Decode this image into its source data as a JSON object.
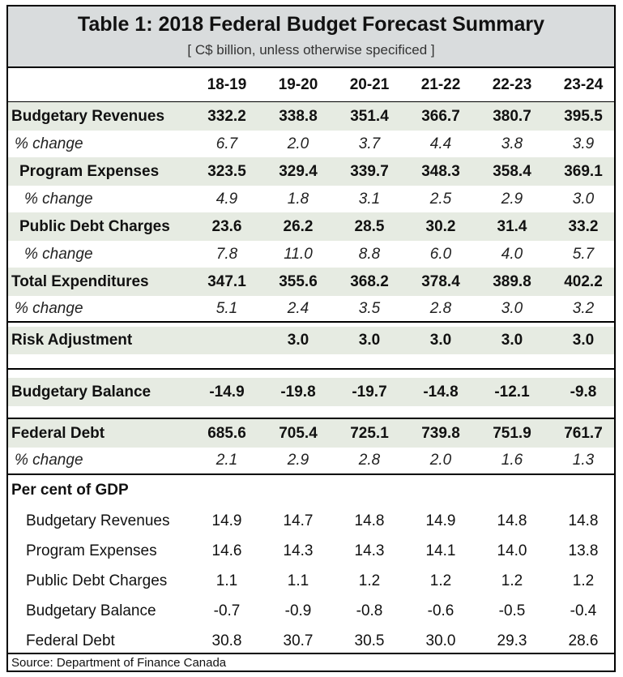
{
  "title": "Table 1: 2018 Federal Budget Forecast Summary",
  "subtitle": "[ C$ billion, unless otherwise specificed ]",
  "years": [
    "18-19",
    "19-20",
    "20-21",
    "21-22",
    "22-23",
    "23-24"
  ],
  "rows": [
    {
      "label": "Budgetary Revenues",
      "values": [
        "332.2",
        "338.8",
        "351.4",
        "366.7",
        "380.7",
        "395.5"
      ]
    },
    {
      "label": "% change",
      "values": [
        "6.7",
        "2.0",
        "3.7",
        "4.4",
        "3.8",
        "3.9"
      ]
    },
    {
      "label": "Program Expenses",
      "values": [
        "323.5",
        "329.4",
        "339.7",
        "348.3",
        "358.4",
        "369.1"
      ]
    },
    {
      "label": "% change",
      "values": [
        "4.9",
        "1.8",
        "3.1",
        "2.5",
        "2.9",
        "3.0"
      ]
    },
    {
      "label": "Public Debt Charges",
      "values": [
        "23.6",
        "26.2",
        "28.5",
        "30.2",
        "31.4",
        "33.2"
      ]
    },
    {
      "label": "% change",
      "values": [
        "7.8",
        "11.0",
        "8.8",
        "6.0",
        "4.0",
        "5.7"
      ]
    },
    {
      "label": "Total Expenditures",
      "values": [
        "347.1",
        "355.6",
        "368.2",
        "378.4",
        "389.8",
        "402.2"
      ]
    },
    {
      "label": "% change",
      "values": [
        "5.1",
        "2.4",
        "3.5",
        "2.8",
        "3.0",
        "3.2"
      ]
    },
    {
      "label": "Risk Adjustment",
      "values": [
        "",
        "3.0",
        "3.0",
        "3.0",
        "3.0",
        "3.0"
      ]
    },
    {
      "label": "Budgetary Balance",
      "values": [
        "-14.9",
        "-19.8",
        "-19.7",
        "-14.8",
        "-12.1",
        "-9.8"
      ]
    },
    {
      "label": "Federal Debt",
      "values": [
        "685.6",
        "705.4",
        "725.1",
        "739.8",
        "751.9",
        "761.7"
      ]
    },
    {
      "label": "% change",
      "values": [
        "2.1",
        "2.9",
        "2.8",
        "2.0",
        "1.6",
        "1.3"
      ]
    },
    {
      "label": "Per cent of GDP",
      "values": [
        "",
        "",
        "",
        "",
        "",
        ""
      ]
    },
    {
      "label": "Budgetary Revenues",
      "values": [
        "14.9",
        "14.7",
        "14.8",
        "14.9",
        "14.8",
        "14.8"
      ]
    },
    {
      "label": "Program Expenses",
      "values": [
        "14.6",
        "14.3",
        "14.3",
        "14.1",
        "14.0",
        "13.8"
      ]
    },
    {
      "label": "Public Debt Charges",
      "values": [
        "1.1",
        "1.1",
        "1.2",
        "1.2",
        "1.2",
        "1.2"
      ]
    },
    {
      "label": "Budgetary Balance",
      "values": [
        "-0.7",
        "-0.9",
        "-0.8",
        "-0.6",
        "-0.5",
        "-0.4"
      ]
    },
    {
      "label": "Federal Debt",
      "values": [
        "30.8",
        "30.7",
        "30.5",
        "30.0",
        "29.3",
        "28.6"
      ]
    }
  ],
  "source": "Source: Department of Finance Canada"
}
